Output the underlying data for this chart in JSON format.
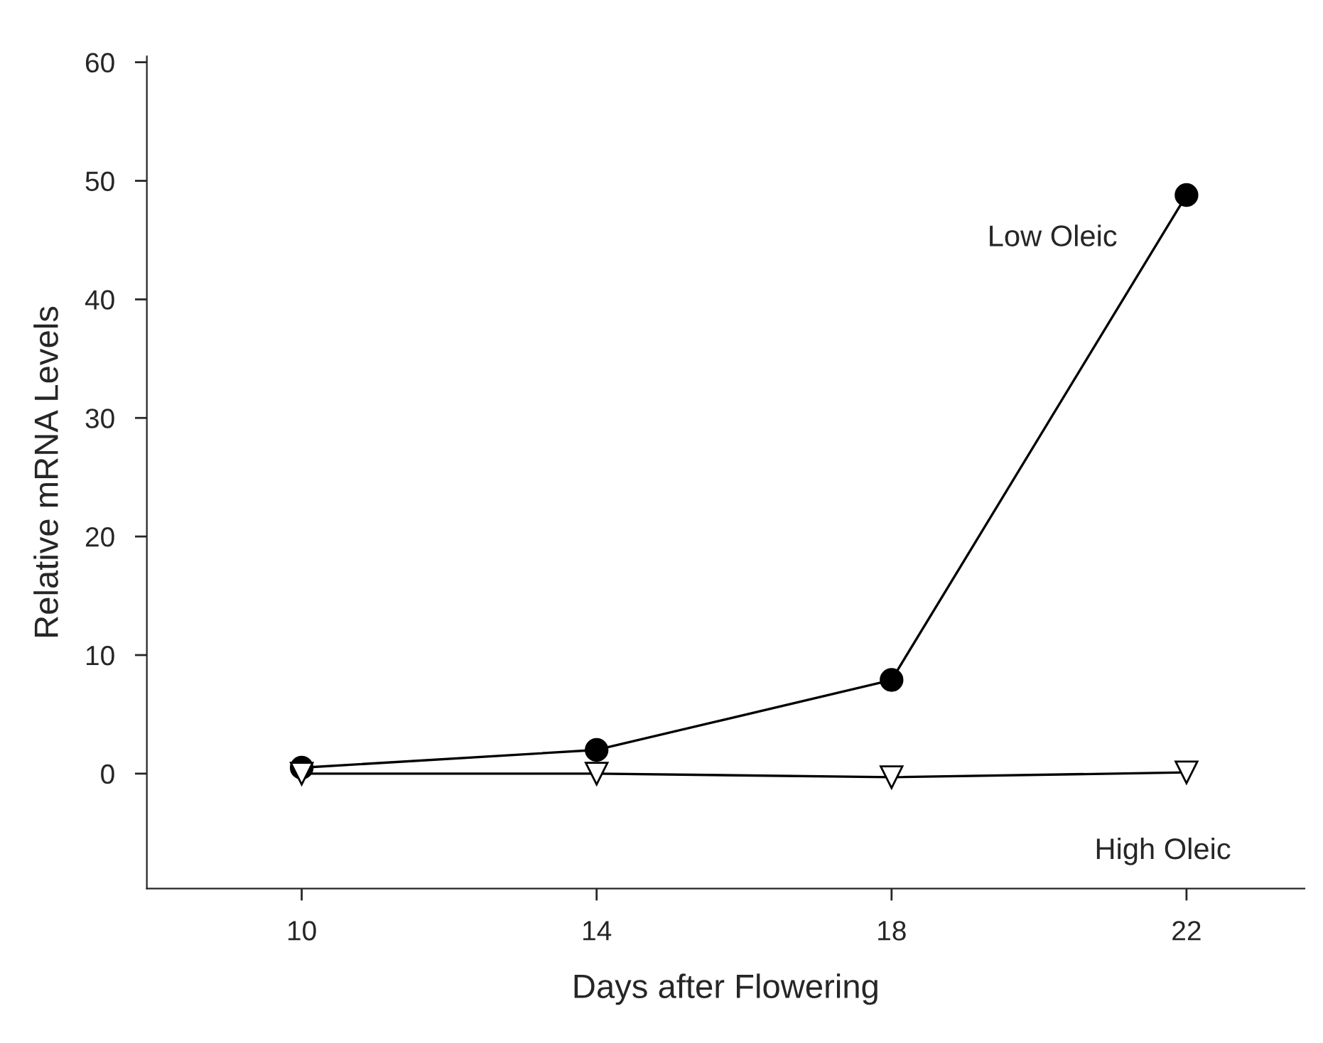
{
  "chart_data": {
    "type": "line",
    "xlabel": "Days after Flowering",
    "ylabel": "Relative mRNA Levels",
    "x": [
      10,
      14,
      18,
      22
    ],
    "series": [
      {
        "name": "Low Oleic",
        "color": "#000000",
        "values": [
          0.5,
          2,
          7.9,
          48.8
        ],
        "marker": "circle"
      },
      {
        "name": "High Oleic",
        "color": "#000000",
        "values": [
          0,
          0,
          -0.3,
          0.1
        ],
        "marker": "triangle"
      }
    ],
    "xlim": [
      7.9,
      23.6
    ],
    "ylim": [
      -9.7,
      60.5
    ],
    "xticks": [
      10,
      14,
      18,
      22
    ],
    "yticks": [
      0,
      10,
      20,
      30,
      40,
      50,
      60
    ],
    "grid": false,
    "legend": false,
    "line_style": "solid"
  }
}
